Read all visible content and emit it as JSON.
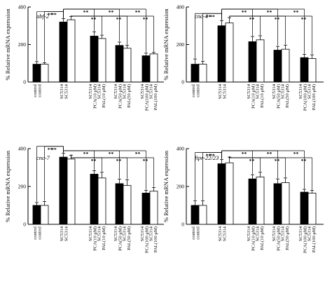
{
  "chart_data": [
    {
      "type": "bar",
      "title": "abf-2",
      "ylabel": "% Relative mRNA expression",
      "ylim": [
        0,
        400
      ],
      "yticks": [
        "0",
        "200",
        "400"
      ],
      "categories": [
        "control",
        "SC5314",
        "SC5314 PCA(10 μM)",
        "SC5314 PCA(50 μM)",
        "SC5314 PCA(100 μM)"
      ],
      "series": [
        {
          "fill": "#000000",
          "values": [
            95,
            320,
            245,
            195,
            140
          ],
          "errors": [
            14,
            18,
            22,
            18,
            14
          ]
        },
        {
          "fill": "#ffffff",
          "values": [
            95,
            332,
            232,
            180,
            150
          ],
          "errors": [
            8,
            18,
            18,
            16,
            8
          ]
        }
      ],
      "tick_lines": [
        [
          "control",
          "control"
        ],
        [
          "SC5314",
          "SC5314"
        ],
        [
          "SC5314",
          "PCA(10 μM)",
          "SC5314",
          "PAL(10 μM)"
        ],
        [
          "SC5314",
          "PCA(50 μM)",
          "SC5314",
          "PAL(50 μM)"
        ],
        [
          "SC5314",
          "PCA(100 μM)",
          "SC5314",
          "PAL(100 μM)"
        ]
      ],
      "significance": "**"
    },
    {
      "type": "bar",
      "title": "cnc-4",
      "ylabel": "% Relative mRNA expression",
      "ylim": [
        0,
        400
      ],
      "yticks": [
        "0",
        "200",
        "400"
      ],
      "categories": [
        "control",
        "SC5314",
        "SC5314 PCA(10 μM)",
        "SC5314 PCA(50 μM)",
        "SC5314 PCA(100 μM)"
      ],
      "series": [
        {
          "fill": "#000000",
          "values": [
            95,
            300,
            215,
            170,
            130
          ],
          "errors": [
            28,
            28,
            28,
            20,
            18
          ]
        },
        {
          "fill": "#ffffff",
          "values": [
            95,
            315,
            225,
            175,
            125
          ],
          "errors": [
            15,
            28,
            22,
            22,
            20
          ]
        }
      ],
      "tick_lines": [
        [
          "control",
          "control"
        ],
        [
          "SC5314",
          "SC5314"
        ],
        [
          "SC5314",
          "PCA(10 μM)",
          "SC5314",
          "PAL(10 μM)"
        ],
        [
          "SC5314",
          "PCA(50 μM)",
          "SC5314",
          "PAL(50 μM)"
        ],
        [
          "SC5314",
          "PCA(100 μM)",
          "SC5314",
          "PAL(100 μM)"
        ]
      ],
      "significance": "**"
    },
    {
      "type": "bar",
      "title": "cnc-7",
      "ylabel": "% Relative mRNA expression",
      "ylim": [
        0,
        400
      ],
      "yticks": [
        "0",
        "200",
        "400"
      ],
      "categories": [
        "control",
        "SC5314",
        "SC5314 PCA(10 μM)",
        "SC5314 PCA(50 μM)",
        "SC5314 PCA(100 μM)"
      ],
      "series": [
        {
          "fill": "#000000",
          "values": [
            100,
            355,
            265,
            215,
            165
          ],
          "errors": [
            15,
            20,
            18,
            24,
            15
          ]
        },
        {
          "fill": "#ffffff",
          "values": [
            100,
            345,
            245,
            205,
            175
          ],
          "errors": [
            20,
            20,
            30,
            30,
            20
          ]
        }
      ],
      "tick_lines": [
        [
          "control",
          "control"
        ],
        [
          "SC5314",
          "SC5314"
        ],
        [
          "SC5314",
          "PCA(10 μM)",
          "SC5314",
          "PAL(10 μM)"
        ],
        [
          "SC5314",
          "PCA(50 μM)",
          "SC5314",
          "PAL(50 μM)"
        ],
        [
          "SC5314",
          "PCA(100 μM)",
          "SC5314",
          "PAL(100 μM)"
        ]
      ],
      "significance": "**"
    },
    {
      "type": "bar",
      "title": "fipr-22/23",
      "ylabel": "% Relative mRNA expression",
      "ylim": [
        0,
        400
      ],
      "yticks": [
        "0",
        "200",
        "400"
      ],
      "categories": [
        "control",
        "SC5314",
        "SC5314 PCA(10 μM)",
        "SC5314 PCA(50 μM)",
        "SC5314 PCA(100 μM)"
      ],
      "series": [
        {
          "fill": "#000000",
          "values": [
            100,
            320,
            240,
            215,
            170
          ],
          "errors": [
            25,
            22,
            22,
            25,
            15
          ]
        },
        {
          "fill": "#ffffff",
          "values": [
            100,
            325,
            250,
            220,
            165
          ],
          "errors": [
            25,
            30,
            25,
            25,
            15
          ]
        }
      ],
      "tick_lines": [
        [
          "control",
          "control"
        ],
        [
          "SC5314",
          "SC5314"
        ],
        [
          "SC5314",
          "PCA(10 μM)",
          "SC5314",
          "PAL(10 μM)"
        ],
        [
          "SC5314",
          "PCA(50 μM)",
          "SC5314",
          "PAL(50 μM)"
        ],
        [
          "SC5314",
          "PCA(100 μM)",
          "SC5314",
          "PAL(100 μM)"
        ]
      ],
      "significance": "**"
    }
  ]
}
